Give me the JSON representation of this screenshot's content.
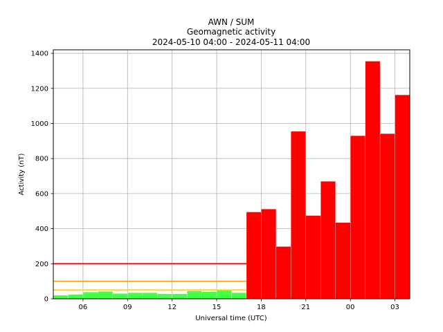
{
  "chart_data": {
    "type": "bar",
    "title": [
      "AWN / SUM",
      "Geomagnetic activity",
      "2024-05-10 04:00 - 2024-05-11 04:00"
    ],
    "xlabel": "Universal time (UTC)",
    "ylabel": "Activity (nT)",
    "xlim_hours": [
      4,
      28
    ],
    "ylim": [
      0,
      1420
    ],
    "grid": true,
    "x_ticks": [
      {
        "label": "06",
        "hour": 6
      },
      {
        "label": "09",
        "hour": 9
      },
      {
        "label": "12",
        "hour": 12
      },
      {
        "label": "15",
        "hour": 15
      },
      {
        "label": "18",
        "hour": 18
      },
      {
        "label": "21",
        "hour": 21
      },
      {
        "label": "00",
        "hour": 24
      },
      {
        "label": "03",
        "hour": 27
      }
    ],
    "y_ticks": [
      0,
      200,
      400,
      600,
      800,
      1000,
      1200,
      1400
    ],
    "bars": [
      {
        "start": "2024-05-10 04:00",
        "value": 20,
        "color": "#44ff44"
      },
      {
        "start": "2024-05-10 05:00",
        "value": 25,
        "color": "#44ff44"
      },
      {
        "start": "2024-05-10 06:00",
        "value": 38,
        "color": "#44ff44"
      },
      {
        "start": "2024-05-10 07:00",
        "value": 42,
        "color": "#44ff44"
      },
      {
        "start": "2024-05-10 08:00",
        "value": 30,
        "color": "#44ff44"
      },
      {
        "start": "2024-05-10 09:00",
        "value": 35,
        "color": "#44ff44"
      },
      {
        "start": "2024-05-10 10:00",
        "value": 35,
        "color": "#44ff44"
      },
      {
        "start": "2024-05-10 11:00",
        "value": 28,
        "color": "#44ff44"
      },
      {
        "start": "2024-05-10 12:00",
        "value": 28,
        "color": "#44ff44"
      },
      {
        "start": "2024-05-10 13:00",
        "value": 45,
        "color": "#44ff44"
      },
      {
        "start": "2024-05-10 14:00",
        "value": 40,
        "color": "#44ff44"
      },
      {
        "start": "2024-05-10 15:00",
        "value": 52,
        "color": "#44ff44"
      },
      {
        "start": "2024-05-10 16:00",
        "value": 35,
        "color": "#44ff44"
      },
      {
        "start": "2024-05-10 17:00",
        "value": 495,
        "color": "#ff0000"
      },
      {
        "start": "2024-05-10 18:00",
        "value": 512,
        "color": "#ff0000"
      },
      {
        "start": "2024-05-10 19:00",
        "value": 298,
        "color": "#ff0000"
      },
      {
        "start": "2024-05-10 20:00",
        "value": 955,
        "color": "#ff0000"
      },
      {
        "start": "2024-05-10 21:00",
        "value": 475,
        "color": "#ff0000"
      },
      {
        "start": "2024-05-10 22:00",
        "value": 670,
        "color": "#ff0000"
      },
      {
        "start": "2024-05-10 23:00",
        "value": 435,
        "color": "#ff0000"
      },
      {
        "start": "2024-05-11 00:00",
        "value": 930,
        "color": "#ff0000"
      },
      {
        "start": "2024-05-11 01:00",
        "value": 1355,
        "color": "#ff0000"
      },
      {
        "start": "2024-05-11 02:00",
        "value": 942,
        "color": "#ff0000"
      },
      {
        "start": "2024-05-11 03:00",
        "value": 1163,
        "color": "#ff0000"
      }
    ],
    "thresholds": [
      {
        "value": 200,
        "color": "#ff0000",
        "end": "2024-05-10 17:00"
      },
      {
        "value": 100,
        "color": "#ffa500",
        "end": "2024-05-10 17:00"
      },
      {
        "value": 50,
        "color": "#ffd700",
        "end": "2024-05-10 17:00"
      }
    ]
  }
}
